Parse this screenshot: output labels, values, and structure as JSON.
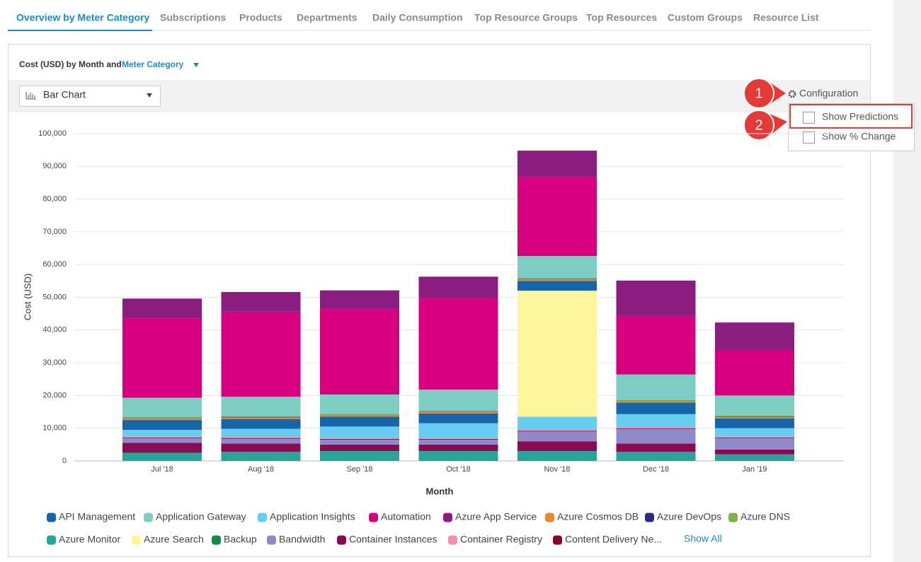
{
  "tabs": [
    "Overview by Meter Category",
    "Subscriptions",
    "Products",
    "Departments",
    "Daily Consumption",
    "Top Resource Groups",
    "Top Resources",
    "Custom Groups",
    "Resource List"
  ],
  "panel": {
    "title": "Cost (USD) by Month and",
    "group_by": "Meter Category",
    "chart_type": "Bar Chart",
    "configuration": "Configuration",
    "options": [
      "Show Predictions",
      "Show % Change"
    ],
    "callouts": [
      "1",
      "2"
    ],
    "show_all": "Show All"
  },
  "chart_data": {
    "type": "bar",
    "stacked": true,
    "x_label": "Month",
    "y_label": "Cost (USD)",
    "categories": [
      "Jul '18",
      "Aug '18",
      "Sep '18",
      "Oct '18",
      "Nov '18",
      "Dec '18",
      "Jan '19"
    ],
    "ylim": [
      0,
      100000
    ],
    "yticks": [
      0,
      {
        "value": 10000,
        "label": "10,000"
      },
      {
        "value": 20000,
        "label": "20,000"
      },
      {
        "value": 30000,
        "label": "30,000"
      },
      {
        "value": 40000,
        "label": "40,000"
      },
      {
        "value": 50000,
        "label": "50,000"
      },
      {
        "value": 60000,
        "label": "60,000"
      },
      {
        "value": 70000,
        "label": "70,000"
      },
      {
        "value": 80000,
        "label": "80,000"
      },
      {
        "value": 90000,
        "label": "90,000"
      },
      {
        "value": 100000,
        "label": "100,000"
      }
    ],
    "grid": true,
    "series": [
      {
        "name": "API Management",
        "color": "#1565a8",
        "values": [
          3000,
          3000,
          3000,
          3000,
          3000,
          3500,
          3000
        ]
      },
      {
        "name": "Application Gateway",
        "color": "#7dcdc2",
        "values": [
          6000,
          6000,
          6000,
          6500,
          6800,
          7800,
          6200
        ]
      },
      {
        "name": "Application Insights",
        "color": "#66ccf0",
        "values": [
          2000,
          2500,
          3500,
          4500,
          4000,
          4000,
          2500
        ]
      },
      {
        "name": "Automation",
        "color": "#d6007f",
        "values": [
          24300,
          26000,
          26000,
          28000,
          24200,
          17900,
          13800
        ]
      },
      {
        "name": "Azure App Service",
        "color": "#8b1c80",
        "values": [
          6000,
          6000,
          5800,
          6500,
          8000,
          10800,
          8500
        ]
      },
      {
        "name": "Azure Cosmos DB",
        "color": "#e68a2e",
        "values": [
          500,
          500,
          500,
          500,
          500,
          500,
          500
        ]
      },
      {
        "name": "Azure DevOps",
        "color": "#2b2a7a",
        "values": [
          100,
          100,
          100,
          100,
          100,
          100,
          100
        ]
      },
      {
        "name": "Azure DNS",
        "color": "#7cb342",
        "values": [
          100,
          100,
          100,
          100,
          100,
          100,
          100
        ]
      },
      {
        "name": "Azure Monitor",
        "color": "#26a69a",
        "values": [
          2500,
          2800,
          3000,
          3000,
          3000,
          2800,
          2000
        ]
      },
      {
        "name": "Azure Search",
        "color": "#fff59d",
        "values": [
          0,
          0,
          0,
          0,
          38500,
          0,
          0
        ]
      },
      {
        "name": "Backup",
        "color": "#16894a",
        "values": [
          100,
          100,
          100,
          100,
          100,
          100,
          100
        ]
      },
      {
        "name": "Bandwidth",
        "color": "#9089c9",
        "values": [
          1500,
          1500,
          1500,
          1500,
          3000,
          4500,
          3500
        ]
      },
      {
        "name": "Container Instances",
        "color": "#8a0b52",
        "values": [
          3000,
          2500,
          2000,
          2000,
          3000,
          2500,
          1500
        ]
      },
      {
        "name": "Container Registry",
        "color": "#f48fb1",
        "values": [
          300,
          300,
          300,
          300,
          300,
          300,
          300
        ]
      },
      {
        "name": "Content Delivery Ne...",
        "color": "#8a0030",
        "values": [
          200,
          200,
          200,
          200,
          200,
          200,
          200
        ]
      }
    ]
  }
}
